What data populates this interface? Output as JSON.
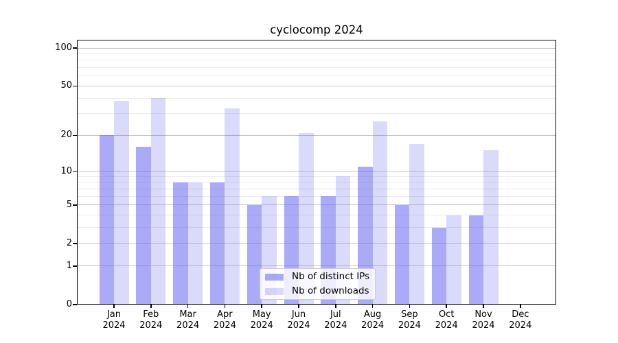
{
  "chart_data": {
    "type": "bar",
    "title": "cyclocomp 2024",
    "xlabel": "",
    "ylabel": "",
    "year_label": "2024",
    "categories": [
      "Jan",
      "Feb",
      "Mar",
      "Apr",
      "May",
      "Jun",
      "Jul",
      "Aug",
      "Sep",
      "Oct",
      "Nov",
      "Dec"
    ],
    "series": [
      {
        "name": "Nb of distinct IPs",
        "color": "rgba(85,85,237,0.50)",
        "values": [
          20,
          16,
          8,
          8,
          5,
          6,
          6,
          11,
          5,
          3,
          4,
          0
        ]
      },
      {
        "name": "Nb of downloads",
        "color": "rgba(85,85,237,0.22)",
        "values": [
          38,
          40,
          8,
          33,
          6,
          21,
          9,
          26,
          17,
          4,
          15,
          0
        ]
      }
    ],
    "y_scale": "log1p",
    "y_ticks": [
      0,
      1,
      2,
      5,
      10,
      20,
      50,
      100
    ],
    "y_minor_gridlines": [
      3,
      4,
      6,
      7,
      8,
      9,
      30,
      40,
      60,
      70,
      80,
      90
    ],
    "ylim": [
      0,
      117
    ],
    "grid": "on",
    "legend_position": "lower center",
    "colors": {
      "major_grid": "#c4c4c4",
      "minor_grid": "#ebebeb",
      "axis": "#000000",
      "background": "#ffffff"
    }
  }
}
